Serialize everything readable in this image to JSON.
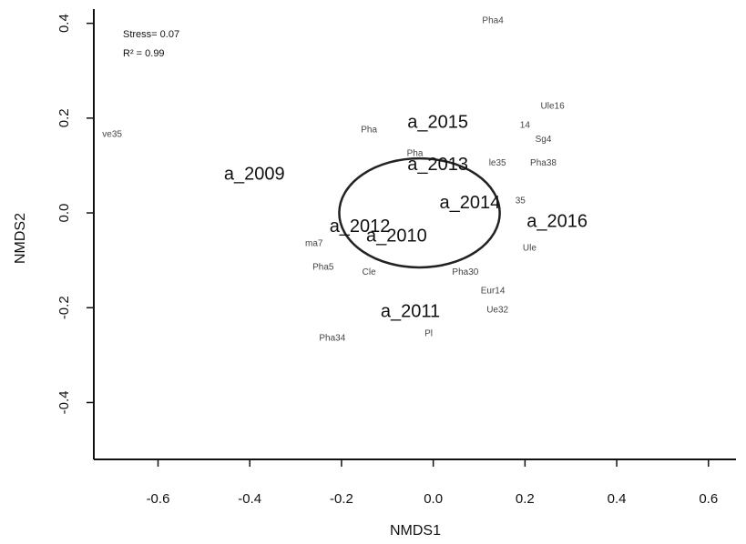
{
  "chart_data": {
    "type": "scatter",
    "xlabel": "NMDS1",
    "ylabel": "NMDS2",
    "xlim": [
      -0.74,
      0.66
    ],
    "ylim": [
      -0.52,
      0.43
    ],
    "x_ticks": [
      -0.6,
      -0.4,
      -0.2,
      0.0,
      0.2,
      0.4,
      0.6
    ],
    "x_tick_labels": [
      "-0.6",
      "-0.4",
      "-0.2",
      "0.0",
      "0.2",
      "0.4",
      "0.6"
    ],
    "y_ticks": [
      0.4,
      0.2,
      0.0,
      -0.2,
      -0.4
    ],
    "y_tick_labels": [
      "0.4",
      "0.2",
      "0.0",
      "-0.2",
      "-0.4"
    ],
    "annotations": {
      "stress": "Stress= 0.07",
      "r2": "R² = 0.99"
    },
    "sites": [
      {
        "label": "a_2009",
        "x": -0.39,
        "y": 0.07
      },
      {
        "label": "a_2010",
        "x": -0.08,
        "y": -0.06
      },
      {
        "label": "a_2011",
        "x": -0.05,
        "y": -0.22
      },
      {
        "label": "a_2012",
        "x": -0.16,
        "y": -0.04
      },
      {
        "label": "a_2013",
        "x": 0.01,
        "y": 0.09
      },
      {
        "label": "a_2014",
        "x": 0.08,
        "y": 0.01
      },
      {
        "label": "a_2015",
        "x": 0.01,
        "y": 0.18
      },
      {
        "label": "a_2016",
        "x": 0.27,
        "y": -0.03
      }
    ],
    "species": [
      {
        "label": "Pha4",
        "x": 0.13,
        "y": 0.4
      },
      {
        "label": "Ule16",
        "x": 0.26,
        "y": 0.22
      },
      {
        "label": "ve35",
        "x": -0.7,
        "y": 0.16
      },
      {
        "label": "Pha",
        "x": -0.14,
        "y": 0.17
      },
      {
        "label": "14",
        "x": 0.2,
        "y": 0.18
      },
      {
        "label": "Sg4",
        "x": 0.24,
        "y": 0.15
      },
      {
        "label": "le35",
        "x": 0.14,
        "y": 0.1
      },
      {
        "label": "Pha38",
        "x": 0.24,
        "y": 0.1
      },
      {
        "label": "Pha",
        "x": -0.04,
        "y": 0.12
      },
      {
        "label": "35",
        "x": 0.19,
        "y": 0.02
      },
      {
        "label": "ma7",
        "x": -0.26,
        "y": -0.07
      },
      {
        "label": "Ule",
        "x": 0.21,
        "y": -0.08
      },
      {
        "label": "Pha5",
        "x": -0.24,
        "y": -0.12
      },
      {
        "label": "Cle",
        "x": -0.14,
        "y": -0.13
      },
      {
        "label": "Pha30",
        "x": 0.07,
        "y": -0.13
      },
      {
        "label": "Eur14",
        "x": 0.13,
        "y": -0.17
      },
      {
        "label": "Ue32",
        "x": 0.14,
        "y": -0.21
      },
      {
        "label": "Pha34",
        "x": -0.22,
        "y": -0.27
      },
      {
        "label": "Pl",
        "x": -0.01,
        "y": -0.26
      }
    ],
    "ellipse": {
      "cx": -0.03,
      "cy": 0.0,
      "rx": 0.175,
      "ry": 0.115
    },
    "grid": false,
    "legend": "none"
  }
}
